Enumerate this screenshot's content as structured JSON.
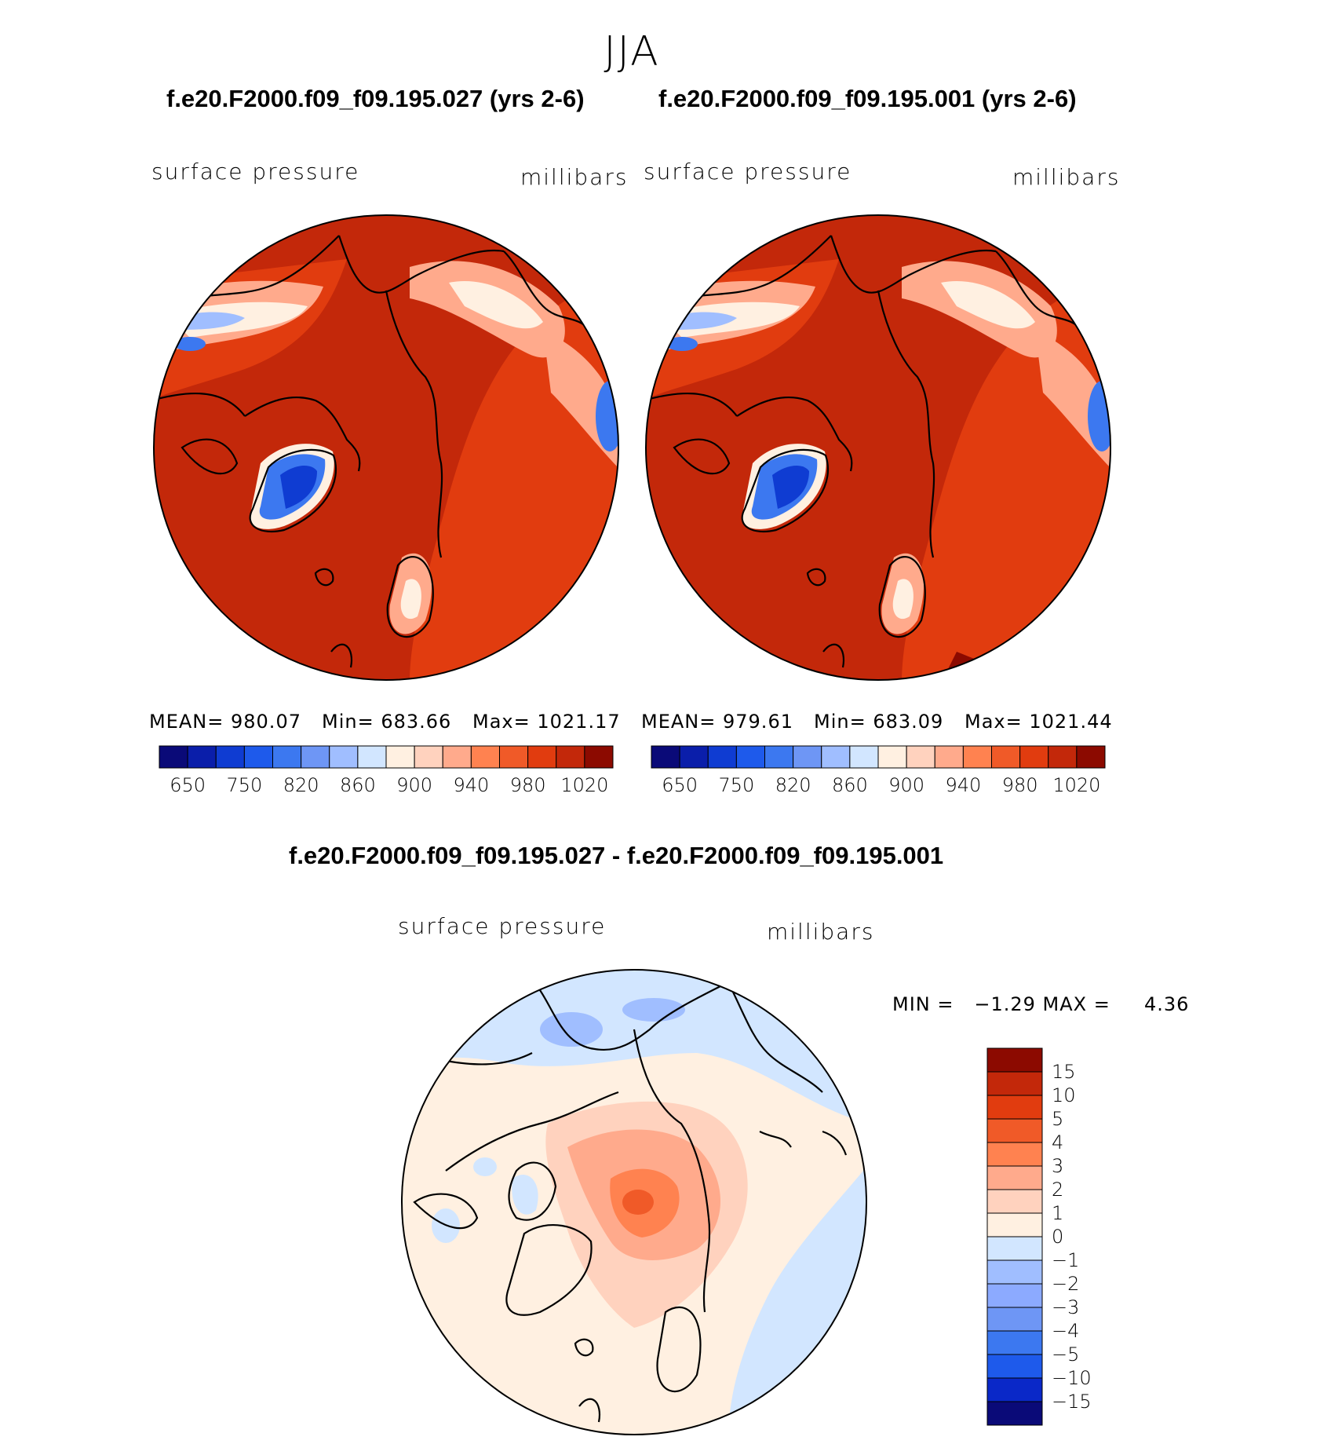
{
  "figure": {
    "season": "JJA"
  },
  "panels": [
    {
      "case": "f.e20.F2000.f09_f09.195.027 (yrs 2-6)",
      "variable": "surface pressure",
      "units": "millibars",
      "stats": {
        "mean_label": "MEAN=",
        "mean": "980.07",
        "min_label": "Min=",
        "min": "683.66",
        "max_label": "Max=",
        "max": "1021.17"
      }
    },
    {
      "case": "f.e20.F2000.f09_f09.195.001 (yrs 2-6)",
      "variable": "surface pressure",
      "units": "millibars",
      "stats": {
        "mean_label": "MEAN=",
        "mean": "979.61",
        "min_label": "Min=",
        "min": "683.09",
        "max_label": "Max=",
        "max": "1021.44"
      }
    }
  ],
  "diff_panel": {
    "title": "f.e20.F2000.f09_f09.195.027 - f.e20.F2000.f09_f09.195.001",
    "variable": "surface pressure",
    "units": "millibars",
    "minmax_text": "MIN =   −1.29 MAX =     4.36"
  },
  "colorbars": {
    "absolute": {
      "colors": [
        "#0a0a78",
        "#0a1eaa",
        "#0f3cd2",
        "#1e5aeb",
        "#3c78f0",
        "#6e96f5",
        "#a0beff",
        "#d2e6ff",
        "#fff0e1",
        "#ffd2be",
        "#ffaa8c",
        "#ff8250",
        "#f05a28",
        "#e13c0f",
        "#c3280a",
        "#8c0a00"
      ],
      "tick_labels": [
        "650",
        "750",
        "820",
        "860",
        "900",
        "940",
        "980",
        "1020"
      ]
    },
    "difference": {
      "colors": [
        "#8c0a00",
        "#c3280a",
        "#e13c0f",
        "#f05a28",
        "#ff8250",
        "#ffaa8c",
        "#ffd2be",
        "#fff0e1",
        "#d2e6ff",
        "#a0beff",
        "#8caaff",
        "#6e96f5",
        "#3c78f0",
        "#1e5aeb",
        "#0a28c8",
        "#0a0a78"
      ],
      "tick_labels": [
        "15",
        "10",
        "5",
        "4",
        "3",
        "2",
        "1",
        "0",
        "−1",
        "−2",
        "−3",
        "−4",
        "−5",
        "−10",
        "−15"
      ]
    }
  }
}
